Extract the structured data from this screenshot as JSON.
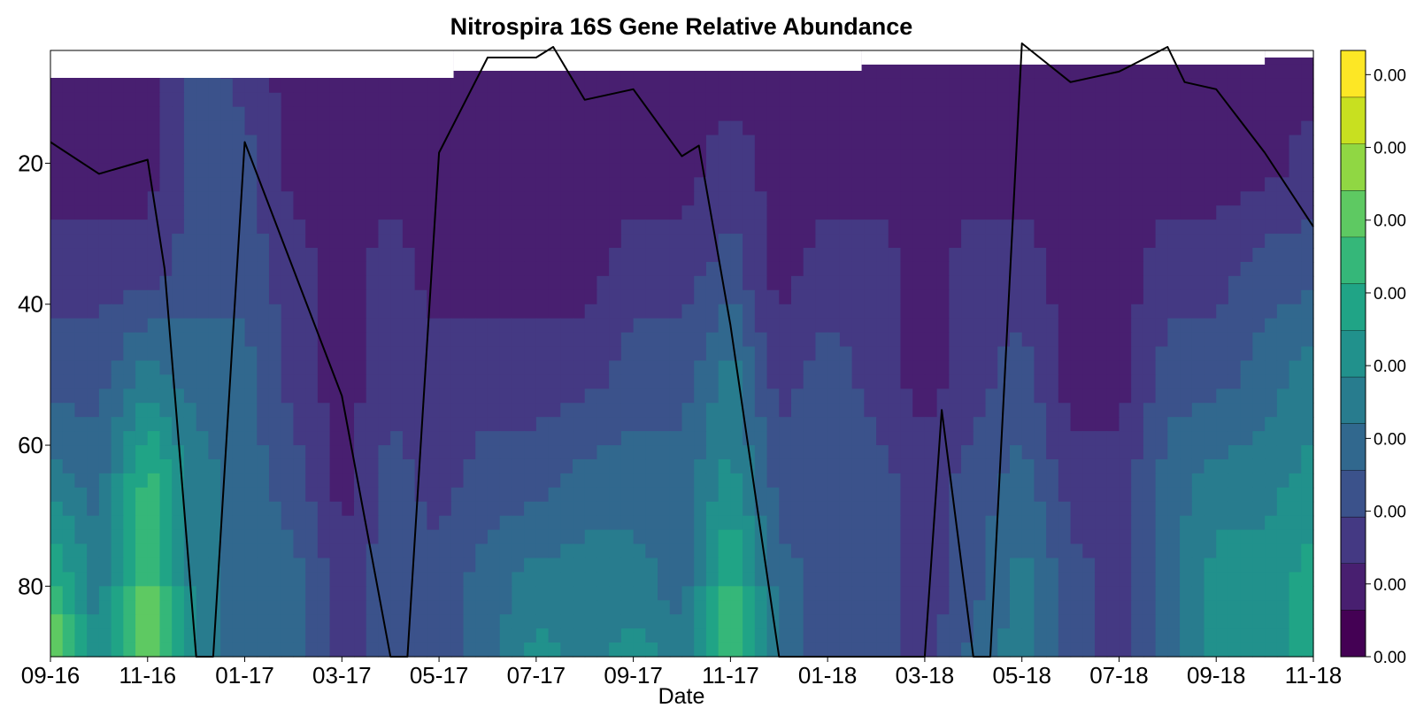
{
  "chart_data": {
    "type": "heatmap",
    "title": "Nitrospira 16S Gene Relative Abundance",
    "xlabel": "Date",
    "ylabel": "",
    "x_ticks": [
      "09-16",
      "11-16",
      "01-17",
      "03-17",
      "05-17",
      "07-17",
      "09-17",
      "11-17",
      "01-18",
      "03-18",
      "05-18",
      "07-18",
      "09-18",
      "11-18"
    ],
    "y_ticks": [
      20,
      40,
      60,
      80
    ],
    "ylim": [
      90,
      4
    ],
    "y_inverted": true,
    "colorbar": {
      "tick_labels": [
        "0.00",
        "0.00",
        "0.00",
        "0.00",
        "0.00",
        "0.00",
        "0.00",
        "0.00",
        "0.00"
      ],
      "colormap": [
        "#440154",
        "#481f70",
        "#443983",
        "#3b528b",
        "#31688e",
        "#287c8e",
        "#21918c",
        "#20a486",
        "#35b779",
        "#5ec962",
        "#90d743",
        "#c8e020",
        "#fde725"
      ]
    },
    "field": {
      "x": [
        "09-16",
        "10-16",
        "11-16",
        "12-16",
        "01-17",
        "02-17",
        "03-17",
        "04-17",
        "05-17",
        "06-17",
        "07-17",
        "08-17",
        "09-17",
        "10-17",
        "11-17",
        "12-17",
        "01-18",
        "02-18",
        "03-18",
        "04-18",
        "05-18",
        "06-18",
        "07-18",
        "08-18",
        "09-18",
        "10-18",
        "11-18"
      ],
      "y": [
        5,
        20,
        35,
        50,
        65,
        80,
        90
      ],
      "levels": [
        [
          1,
          1,
          1,
          3,
          2,
          1,
          1,
          1,
          1,
          1,
          1,
          1,
          1,
          1,
          1,
          1,
          1,
          1,
          1,
          1,
          1,
          1,
          1,
          1,
          1,
          1,
          1
        ],
        [
          1,
          1,
          1,
          3,
          3,
          1,
          1,
          1,
          1,
          1,
          1,
          1,
          1,
          1,
          2,
          1,
          1,
          1,
          1,
          1,
          1,
          1,
          1,
          1,
          1,
          1,
          2
        ],
        [
          2,
          2,
          2,
          3,
          3,
          2,
          1,
          2,
          1,
          1,
          1,
          1,
          2,
          2,
          3,
          1,
          2,
          2,
          1,
          2,
          2,
          1,
          1,
          2,
          2,
          3,
          3
        ],
        [
          3,
          3,
          5,
          4,
          4,
          2,
          1,
          2,
          2,
          2,
          2,
          2,
          3,
          3,
          5,
          2,
          3,
          2,
          1,
          2,
          3,
          1,
          1,
          3,
          3,
          4,
          5
        ],
        [
          5,
          4,
          8,
          5,
          4,
          3,
          1,
          3,
          2,
          3,
          3,
          4,
          4,
          4,
          6,
          3,
          3,
          3,
          2,
          3,
          4,
          2,
          2,
          4,
          5,
          5,
          6
        ],
        [
          8,
          5,
          9,
          5,
          4,
          4,
          2,
          3,
          3,
          4,
          5,
          5,
          5,
          4,
          8,
          4,
          3,
          3,
          2,
          3,
          5,
          3,
          2,
          4,
          6,
          6,
          7
        ],
        [
          10,
          5,
          9,
          5,
          4,
          4,
          2,
          3,
          3,
          4,
          6,
          5,
          6,
          5,
          9,
          4,
          3,
          3,
          2,
          4,
          5,
          3,
          2,
          4,
          6,
          6,
          7
        ]
      ]
    },
    "line_series": {
      "name": "",
      "x": [
        "09-16",
        "10-16",
        "11-16",
        "11-16",
        "12-16",
        "12-16",
        "01-17",
        "03-17",
        "04-17",
        "04-17",
        "05-17",
        "06-17",
        "07-17",
        "07-17",
        "08-17",
        "09-17",
        "10-17",
        "10-17",
        "11-17",
        "12-17",
        "12-17",
        "03-18",
        "03-18",
        "04-18",
        "04-18",
        "05-18",
        "06-18",
        "07-18",
        "08-18",
        "08-18",
        "09-18",
        "10-18",
        "11-18"
      ],
      "y": [
        17,
        21.5,
        19.5,
        35,
        90,
        90,
        17,
        53,
        90,
        90,
        18.5,
        5,
        5,
        3.5,
        11,
        9.5,
        19,
        17.5,
        43,
        90,
        90,
        90,
        55,
        90,
        90,
        3,
        8.5,
        7,
        3.5,
        8.5,
        9.5,
        18.5,
        29
      ]
    }
  }
}
